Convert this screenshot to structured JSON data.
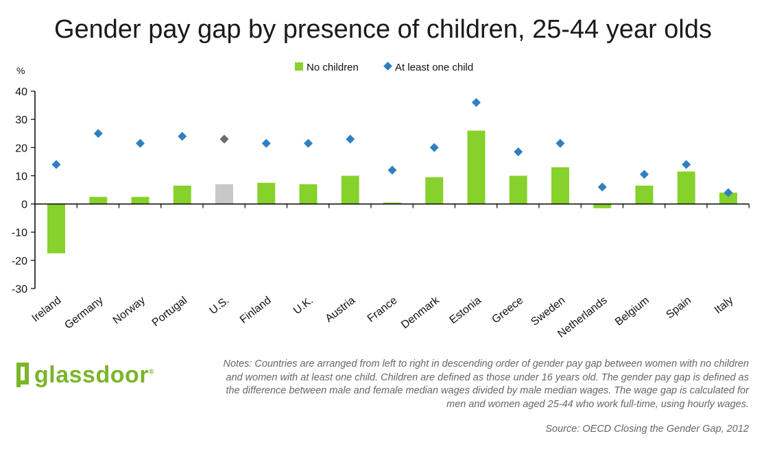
{
  "chart_data": {
    "type": "bar",
    "title": "Gender pay gap by presence of children, 25-44 year olds",
    "ylabel": "%",
    "xlabel": "",
    "ylim": [
      -30,
      40
    ],
    "yticks": [
      40,
      30,
      20,
      10,
      0,
      -10,
      -20,
      -30
    ],
    "grid": false,
    "legend_position": "top-center",
    "categories": [
      "Ireland",
      "Germany",
      "Norway",
      "Portugal",
      "U.S.",
      "Finland",
      "U.K.",
      "Austria",
      "France",
      "Denmark",
      "Estonia",
      "Greece",
      "Sweden",
      "Netherlands",
      "Belgium",
      "Spain",
      "Italy"
    ],
    "highlight_category": "U.S.",
    "series": [
      {
        "name": "No children",
        "kind": "bar",
        "color": "#86d12b",
        "highlight_color": "#c8c8c8",
        "values": [
          -17.5,
          2.5,
          2.5,
          6.5,
          7,
          7.5,
          7,
          10,
          0.5,
          9.5,
          26,
          10,
          13,
          -1.5,
          6.5,
          11.5,
          4
        ]
      },
      {
        "name": "At least one child",
        "kind": "marker",
        "marker": "diamond",
        "color": "#2f7fc1",
        "highlight_color": "#6b6b6b",
        "values": [
          14,
          25,
          21.5,
          24,
          23,
          21.5,
          21.5,
          23,
          12,
          20,
          36,
          18.5,
          21.5,
          6,
          10.5,
          14,
          4
        ]
      }
    ]
  },
  "logo": {
    "text": "glassdoor",
    "mark": "®",
    "color": "#7ab52a"
  },
  "notes": "Notes: Countries are arranged from left to right in descending order of gender pay gap between women with no children and women with at least one child. Children are defined as those under 16 years old. The gender pay gap is defined as the difference between male and female median wages divided by male median wages. The wage gap is calculated for men and women aged 25-44 who work full-time, using hourly wages.",
  "source": "Source: OECD Closing the Gender Gap, 2012"
}
